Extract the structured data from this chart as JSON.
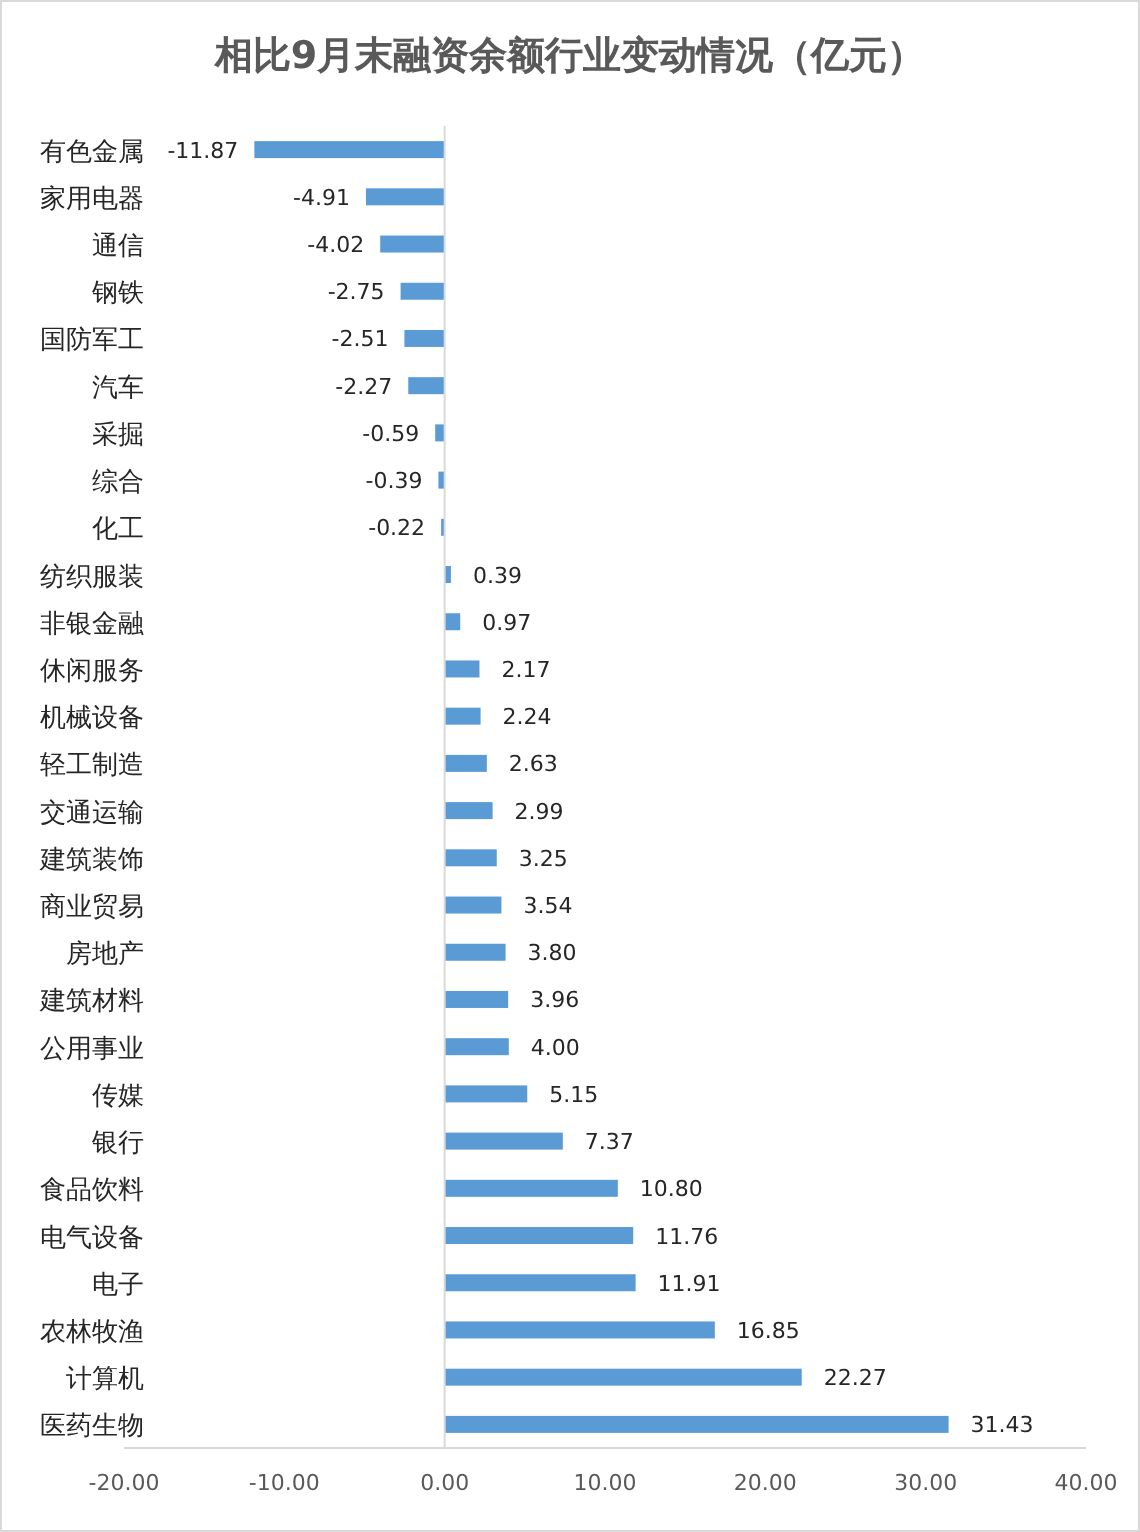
{
  "chart_data": {
    "type": "bar",
    "orientation": "horizontal",
    "title": "相比9月末融资余额行业变动情况（亿元）",
    "categories": [
      "有色金属",
      "家用电器",
      "通信",
      "钢铁",
      "国防军工",
      "汽车",
      "采掘",
      "综合",
      "化工",
      "纺织服装",
      "非银金融",
      "休闲服务",
      "机械设备",
      "轻工制造",
      "交通运输",
      "建筑装饰",
      "商业贸易",
      "房地产",
      "建筑材料",
      "公用事业",
      "传媒",
      "银行",
      "食品饮料",
      "电气设备",
      "电子",
      "农林牧渔",
      "计算机",
      "医药生物"
    ],
    "values": [
      -11.87,
      -4.91,
      -4.02,
      -2.75,
      -2.51,
      -2.27,
      -0.59,
      -0.39,
      -0.22,
      0.39,
      0.97,
      2.17,
      2.24,
      2.63,
      2.99,
      3.25,
      3.54,
      3.8,
      3.96,
      4.0,
      5.15,
      7.37,
      10.8,
      11.76,
      11.91,
      16.85,
      22.27,
      31.43
    ],
    "value_labels": [
      "-11.87",
      "-4.91",
      "-4.02",
      "-2.75",
      "-2.51",
      "-2.27",
      "-0.59",
      "-0.39",
      "-0.22",
      "0.39",
      "0.97",
      "2.17",
      "2.24",
      "2.63",
      "2.99",
      "3.25",
      "3.54",
      "3.80",
      "3.96",
      "4.00",
      "5.15",
      "7.37",
      "10.80",
      "11.76",
      "11.91",
      "16.85",
      "22.27",
      "31.43"
    ],
    "color": "#5b9bd5",
    "xlim": [
      -20,
      40
    ],
    "xticks": [
      {
        "value": -20,
        "label": "-20.00"
      },
      {
        "value": -10,
        "label": "-10.00"
      },
      {
        "value": 0,
        "label": "0.00"
      },
      {
        "value": 10,
        "label": "10.00"
      },
      {
        "value": 20,
        "label": "20.00"
      },
      {
        "value": 30,
        "label": "30.00"
      },
      {
        "value": 40,
        "label": "40.00"
      }
    ]
  }
}
